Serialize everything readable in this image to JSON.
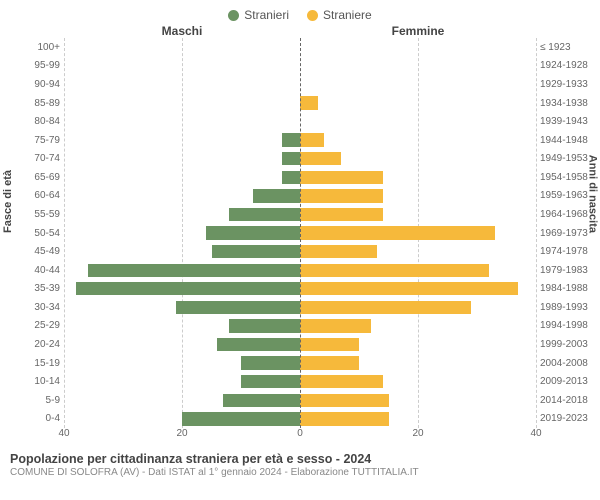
{
  "chart": {
    "type": "population-pyramid",
    "legend": [
      {
        "label": "Stranieri",
        "color": "#6b9362"
      },
      {
        "label": "Straniere",
        "color": "#f6b93b"
      }
    ],
    "column_titles": {
      "left": "Maschi",
      "right": "Femmine"
    },
    "y_left_label": "Fasce di età",
    "y_right_label": "Anni di nascita",
    "age_groups": [
      "100+",
      "95-99",
      "90-94",
      "85-89",
      "80-84",
      "75-79",
      "70-74",
      "65-69",
      "60-64",
      "55-59",
      "50-54",
      "45-49",
      "40-44",
      "35-39",
      "30-34",
      "25-29",
      "20-24",
      "15-19",
      "10-14",
      "5-9",
      "0-4"
    ],
    "birth_years": [
      "≤ 1923",
      "1924-1928",
      "1929-1933",
      "1934-1938",
      "1939-1943",
      "1944-1948",
      "1949-1953",
      "1954-1958",
      "1959-1963",
      "1964-1968",
      "1969-1973",
      "1974-1978",
      "1979-1983",
      "1984-1988",
      "1989-1993",
      "1994-1998",
      "1999-2003",
      "2004-2008",
      "2009-2013",
      "2014-2018",
      "2019-2023"
    ],
    "male": [
      0,
      0,
      0,
      0,
      0,
      3,
      3,
      3,
      8,
      12,
      16,
      15,
      36,
      38,
      21,
      12,
      14,
      10,
      10,
      13,
      20
    ],
    "female": [
      0,
      0,
      0,
      3,
      0,
      4,
      7,
      14,
      14,
      14,
      33,
      13,
      32,
      37,
      29,
      12,
      10,
      10,
      14,
      15,
      15
    ],
    "male_color": "#6b9362",
    "female_color": "#f6b93b",
    "x_max": 40,
    "x_ticks": [
      40,
      20,
      0,
      20,
      40
    ],
    "grid_positions_pct": [
      0,
      25,
      50,
      75,
      100
    ],
    "background": "#ffffff",
    "grid_color": "#cccccc",
    "centerline_color": "#666666",
    "tick_font_size": 10,
    "label_font_size": 11,
    "title_font_size": 12.5,
    "bar_height_pct": 72
  },
  "footer": {
    "title": "Popolazione per cittadinanza straniera per età e sesso - 2024",
    "subtitle": "COMUNE DI SOLOFRA (AV) - Dati ISTAT al 1° gennaio 2024 - Elaborazione TUTTITALIA.IT"
  }
}
